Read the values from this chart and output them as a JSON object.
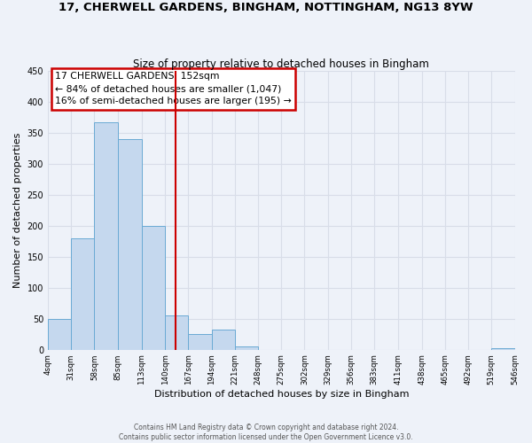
{
  "title": "17, CHERWELL GARDENS, BINGHAM, NOTTINGHAM, NG13 8YW",
  "subtitle": "Size of property relative to detached houses in Bingham",
  "xlabel": "Distribution of detached houses by size in Bingham",
  "ylabel": "Number of detached properties",
  "bin_edges": [
    4,
    31,
    58,
    85,
    113,
    140,
    167,
    194,
    221,
    248,
    275,
    302,
    329,
    356,
    383,
    411,
    438,
    465,
    492,
    519,
    546
  ],
  "bar_heights": [
    49,
    180,
    367,
    340,
    200,
    55,
    26,
    33,
    5,
    0,
    0,
    0,
    0,
    0,
    0,
    0,
    0,
    0,
    0,
    2
  ],
  "bar_color": "#c5d8ee",
  "bar_edge_color": "#6aaad4",
  "vline_x": 152,
  "vline_color": "#cc0000",
  "annotation_title": "17 CHERWELL GARDENS: 152sqm",
  "annotation_line1": "← 84% of detached houses are smaller (1,047)",
  "annotation_line2": "16% of semi-detached houses are larger (195) →",
  "annotation_box_color": "#ffffff",
  "annotation_box_edge_color": "#cc0000",
  "ylim": [
    0,
    450
  ],
  "yticks": [
    0,
    50,
    100,
    150,
    200,
    250,
    300,
    350,
    400,
    450
  ],
  "tick_labels": [
    "4sqm",
    "31sqm",
    "58sqm",
    "85sqm",
    "113sqm",
    "140sqm",
    "167sqm",
    "194sqm",
    "221sqm",
    "248sqm",
    "275sqm",
    "302sqm",
    "329sqm",
    "356sqm",
    "383sqm",
    "411sqm",
    "438sqm",
    "465sqm",
    "492sqm",
    "519sqm",
    "546sqm"
  ],
  "footer1": "Contains HM Land Registry data © Crown copyright and database right 2024.",
  "footer2": "Contains public sector information licensed under the Open Government Licence v3.0.",
  "bg_color": "#eef2f9",
  "grid_color": "#d8dde8"
}
